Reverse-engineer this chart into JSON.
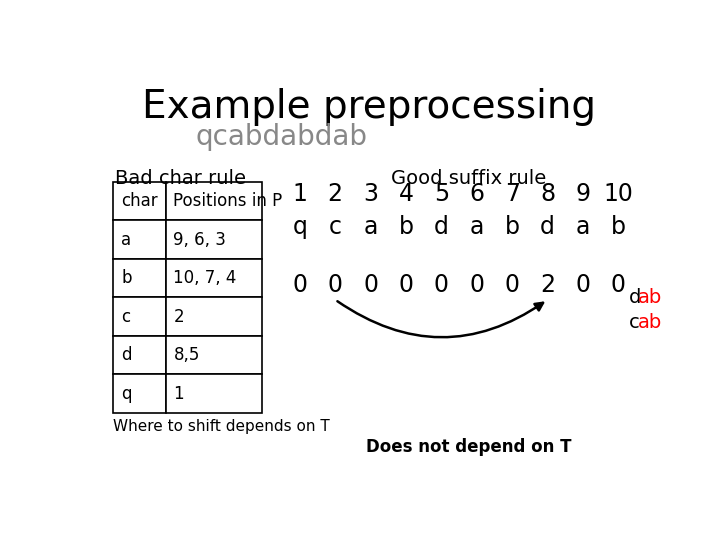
{
  "title": "Example preprocessing",
  "subtitle": "qcabdabdab",
  "bad_char_title": "Bad char rule",
  "good_suffix_title": "Good suffix rule",
  "table_headers": [
    "char",
    "Positions in P"
  ],
  "table_rows": [
    [
      "a",
      "9, 6, 3"
    ],
    [
      "b",
      "10, 7, 4"
    ],
    [
      "c",
      "2"
    ],
    [
      "d",
      "8,5"
    ],
    [
      "q",
      "1"
    ]
  ],
  "positions": [
    "1",
    "2",
    "3",
    "4",
    "5",
    "6",
    "7",
    "8",
    "9",
    "10"
  ],
  "pattern_chars": [
    "q",
    "c",
    "a",
    "b",
    "d",
    "a",
    "b",
    "d",
    "a",
    "b"
  ],
  "shift_values": [
    "0",
    "0",
    "0",
    "0",
    "0",
    "0",
    "0",
    "2",
    "0",
    "0"
  ],
  "where_to_shift": "Where to shift depends on T",
  "does_not_depend": "Does not depend on T",
  "background_color": "#ffffff",
  "text_color": "#000000",
  "red_color": "#ff0000"
}
